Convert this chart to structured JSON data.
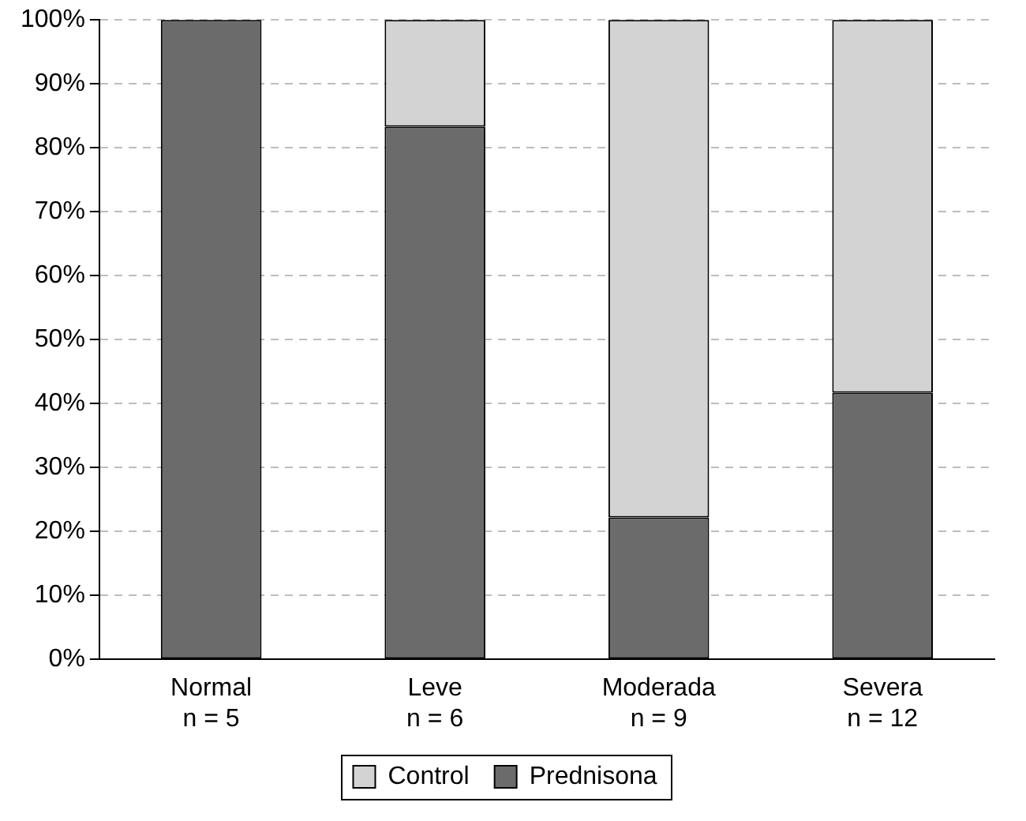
{
  "chart_data": {
    "type": "bar",
    "stacked": true,
    "categories": [
      "Normal\nn = 5",
      "Leve\nn = 6",
      "Moderada\nn = 9",
      "Severa\nn = 12"
    ],
    "series": [
      {
        "name": "Prednisona",
        "color": "#6b6b6b",
        "values": [
          100,
          83.3,
          22.2,
          41.7
        ]
      },
      {
        "name": "Control",
        "color": "#d3d3d3",
        "values": [
          0,
          16.7,
          77.8,
          58.3
        ]
      }
    ],
    "ylim": [
      0,
      100
    ],
    "yticks": [
      {
        "value": 0,
        "label": "0%"
      },
      {
        "value": 10,
        "label": "10%"
      },
      {
        "value": 20,
        "label": "20%"
      },
      {
        "value": 30,
        "label": "30%"
      },
      {
        "value": 40,
        "label": "40%"
      },
      {
        "value": 50,
        "label": "50%"
      },
      {
        "value": 60,
        "label": "60%"
      },
      {
        "value": 70,
        "label": "70%"
      },
      {
        "value": 80,
        "label": "80%"
      },
      {
        "value": 90,
        "label": "90%"
      },
      {
        "value": 100,
        "label": "100%"
      }
    ],
    "grid": "y",
    "legend": "bottom"
  }
}
